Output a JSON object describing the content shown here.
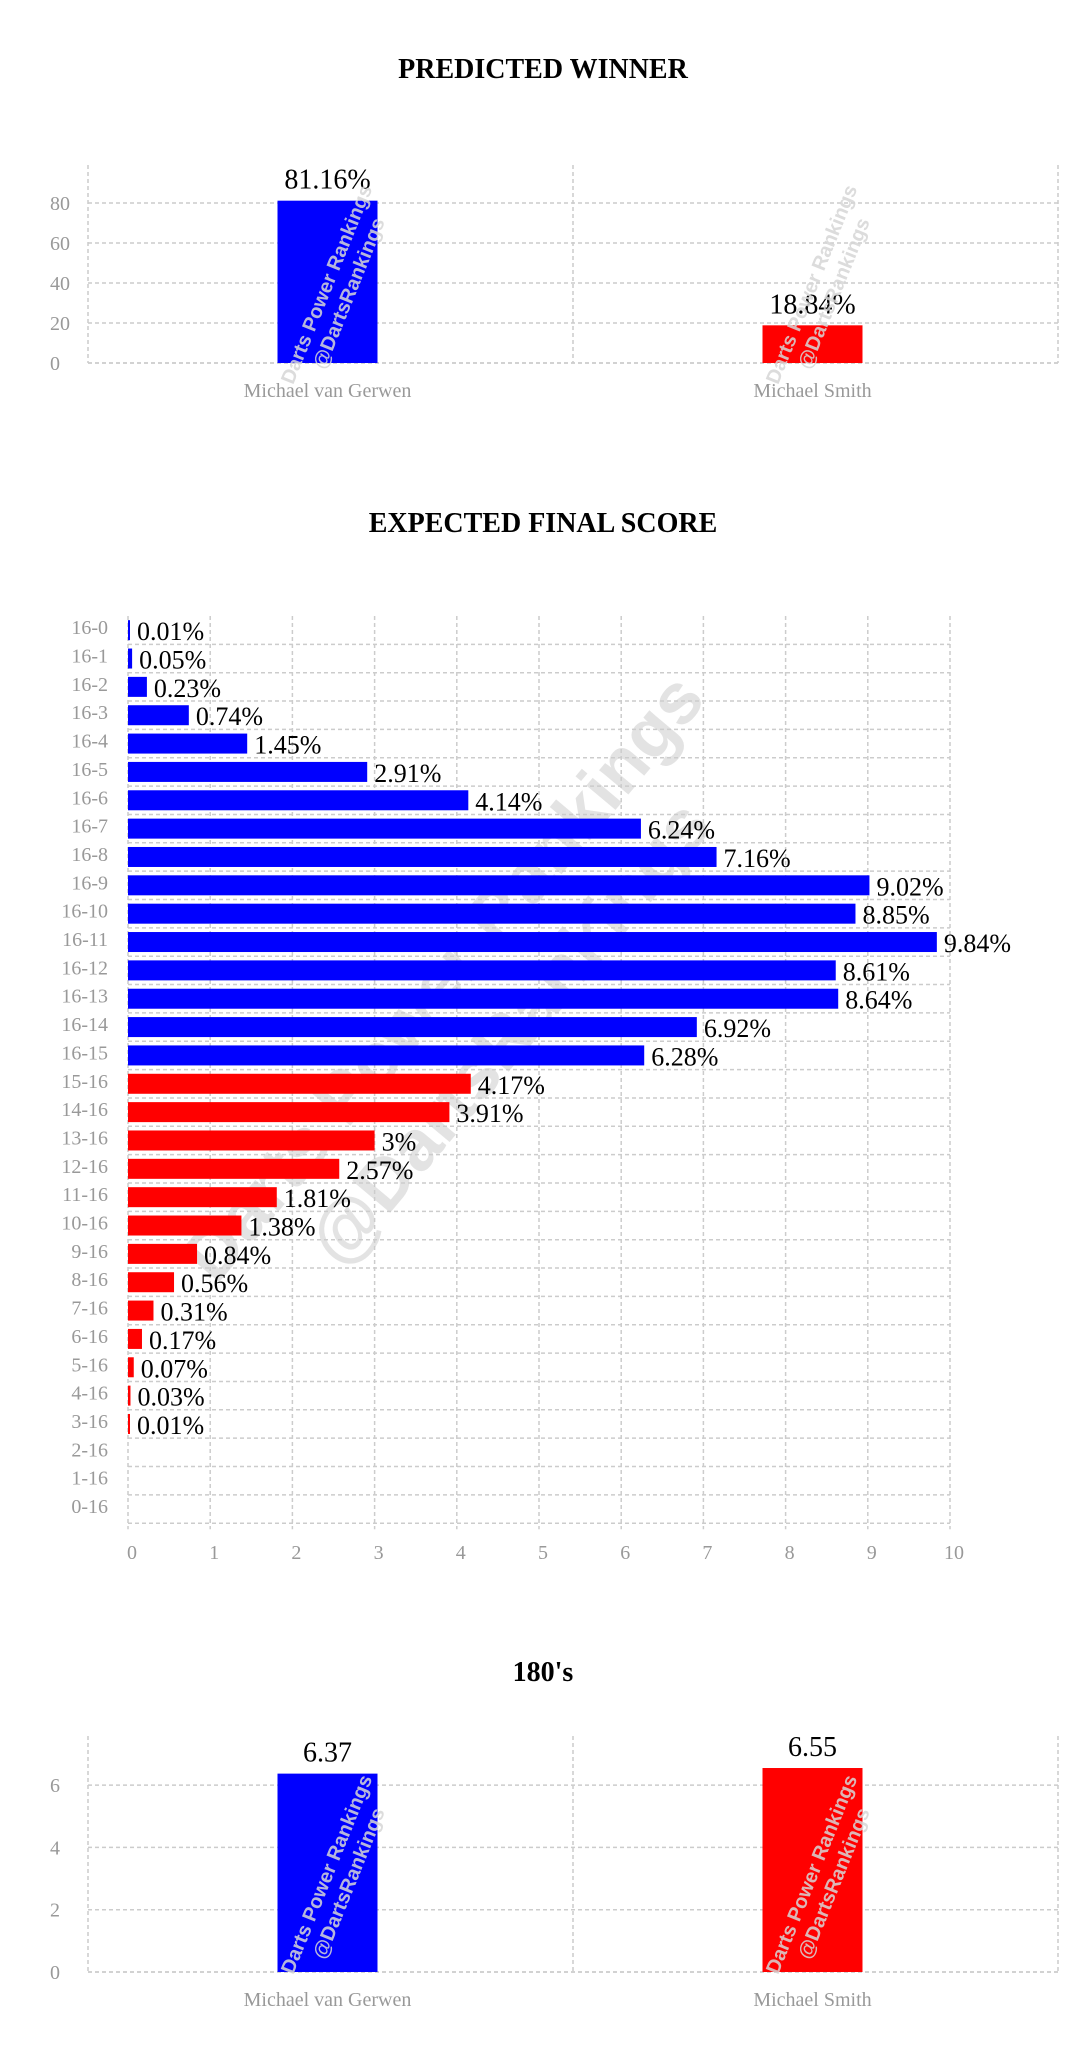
{
  "colors": {
    "player1": "#0000ff",
    "player2": "#ff0000"
  },
  "watermark": {
    "line1": "Darts Power Rankings",
    "line2": "@DartsRankings"
  },
  "chart_data": [
    {
      "id": "winner",
      "type": "bar",
      "title": "PREDICTED WINNER",
      "categories": [
        "Michael van Gerwen",
        "Michael Smith"
      ],
      "values": [
        81.16,
        18.84
      ],
      "value_labels": [
        "81.16%",
        "18.84%"
      ],
      "ylim": [
        0,
        90
      ],
      "yticks": [
        0,
        20,
        40,
        60,
        80
      ],
      "grid": true
    },
    {
      "id": "score",
      "type": "bar",
      "orientation": "horizontal",
      "title": "EXPECTED FINAL SCORE",
      "categories": [
        "16-0",
        "16-1",
        "16-2",
        "16-3",
        "16-4",
        "16-5",
        "16-6",
        "16-7",
        "16-8",
        "16-9",
        "16-10",
        "16-11",
        "16-12",
        "16-13",
        "16-14",
        "16-15",
        "15-16",
        "14-16",
        "13-16",
        "12-16",
        "11-16",
        "10-16",
        "9-16",
        "8-16",
        "7-16",
        "6-16",
        "5-16",
        "4-16",
        "3-16",
        "2-16",
        "1-16",
        "0-16"
      ],
      "values": [
        0.01,
        0.05,
        0.23,
        0.74,
        1.45,
        2.91,
        4.14,
        6.24,
        7.16,
        9.02,
        8.85,
        9.84,
        8.61,
        8.64,
        6.92,
        6.28,
        4.17,
        3.91,
        3,
        2.57,
        1.81,
        1.38,
        0.84,
        0.56,
        0.31,
        0.17,
        0.07,
        0.03,
        0.01,
        0,
        0,
        0
      ],
      "value_labels": [
        "0.01%",
        "0.05%",
        "0.23%",
        "0.74%",
        "1.45%",
        "2.91%",
        "4.14%",
        "6.24%",
        "7.16%",
        "9.02%",
        "8.85%",
        "9.84%",
        "8.61%",
        "8.64%",
        "6.92%",
        "6.28%",
        "4.17%",
        "3.91%",
        "3%",
        "2.57%",
        "1.81%",
        "1.38%",
        "0.84%",
        "0.56%",
        "0.31%",
        "0.17%",
        "0.07%",
        "0.03%",
        "0.01%",
        "",
        "",
        ""
      ],
      "winner_count": 16,
      "xlim": [
        0,
        10
      ],
      "xticks": [
        0,
        1,
        2,
        3,
        4,
        5,
        6,
        7,
        8,
        9,
        10
      ],
      "grid": true
    },
    {
      "id": "180s",
      "type": "bar",
      "title": "180's",
      "categories": [
        "Michael van Gerwen",
        "Michael Smith"
      ],
      "values": [
        6.37,
        6.55
      ],
      "value_labels": [
        "6.37",
        "6.55"
      ],
      "ylim": [
        0,
        7
      ],
      "yticks": [
        0,
        2,
        4,
        6
      ],
      "grid": true
    }
  ]
}
